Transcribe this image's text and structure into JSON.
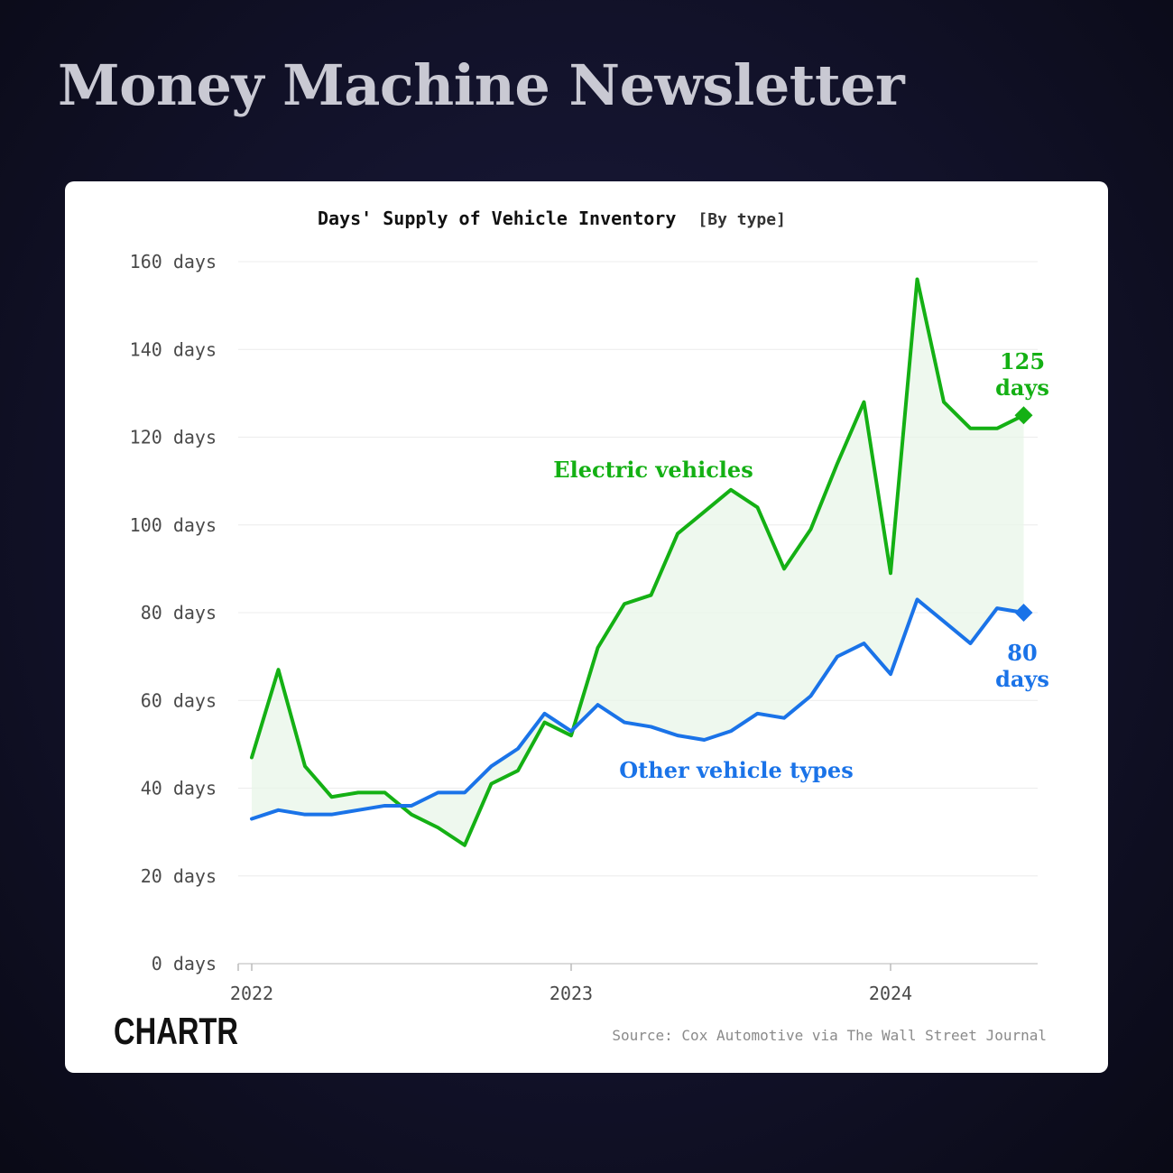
{
  "header": {
    "title": "Money Machine Newsletter"
  },
  "brand": {
    "logo_text": "CHARTR"
  },
  "chart_data": {
    "type": "line",
    "title": "Days' Supply of Vehicle Inventory",
    "subtitle": "[By type]",
    "source": "Source: Cox Automotive via The Wall Street Journal",
    "ylim": [
      0,
      160
    ],
    "y_ticks": [
      "0 days",
      "20 days",
      "40 days",
      "60 days",
      "80 days",
      "100 days",
      "120 days",
      "140 days",
      "160 days"
    ],
    "y_tick_values": [
      0,
      20,
      40,
      60,
      80,
      100,
      120,
      140,
      160
    ],
    "x_ticks": [
      "2022",
      "2023",
      "2024"
    ],
    "x": [
      "2022-01",
      "2022-02",
      "2022-03",
      "2022-04",
      "2022-05",
      "2022-06",
      "2022-07",
      "2022-08",
      "2022-09",
      "2022-10",
      "2022-11",
      "2022-12",
      "2023-01",
      "2023-02",
      "2023-03",
      "2023-04",
      "2023-05",
      "2023-06",
      "2023-07",
      "2023-08",
      "2023-09",
      "2023-10",
      "2023-11",
      "2023-12",
      "2024-01",
      "2024-02",
      "2024-03",
      "2024-04",
      "2024-05",
      "2024-06"
    ],
    "grid": true,
    "series": [
      {
        "name": "Electric vehicles",
        "color": "#14b014",
        "end_label": [
          "125",
          "days"
        ],
        "values": [
          47,
          67,
          45,
          38,
          39,
          39,
          34,
          31,
          27,
          41,
          44,
          55,
          52,
          72,
          82,
          84,
          98,
          103,
          108,
          104,
          90,
          99,
          114,
          128,
          89,
          156,
          128,
          122,
          122,
          125
        ]
      },
      {
        "name": "Other vehicle types",
        "color": "#1a73e8",
        "end_label": [
          "80",
          "days"
        ],
        "values": [
          33,
          35,
          34,
          34,
          35,
          36,
          36,
          39,
          39,
          45,
          49,
          57,
          53,
          59,
          55,
          54,
          52,
          51,
          53,
          57,
          56,
          61,
          70,
          73,
          66,
          83,
          78,
          73,
          81,
          80
        ]
      }
    ]
  }
}
